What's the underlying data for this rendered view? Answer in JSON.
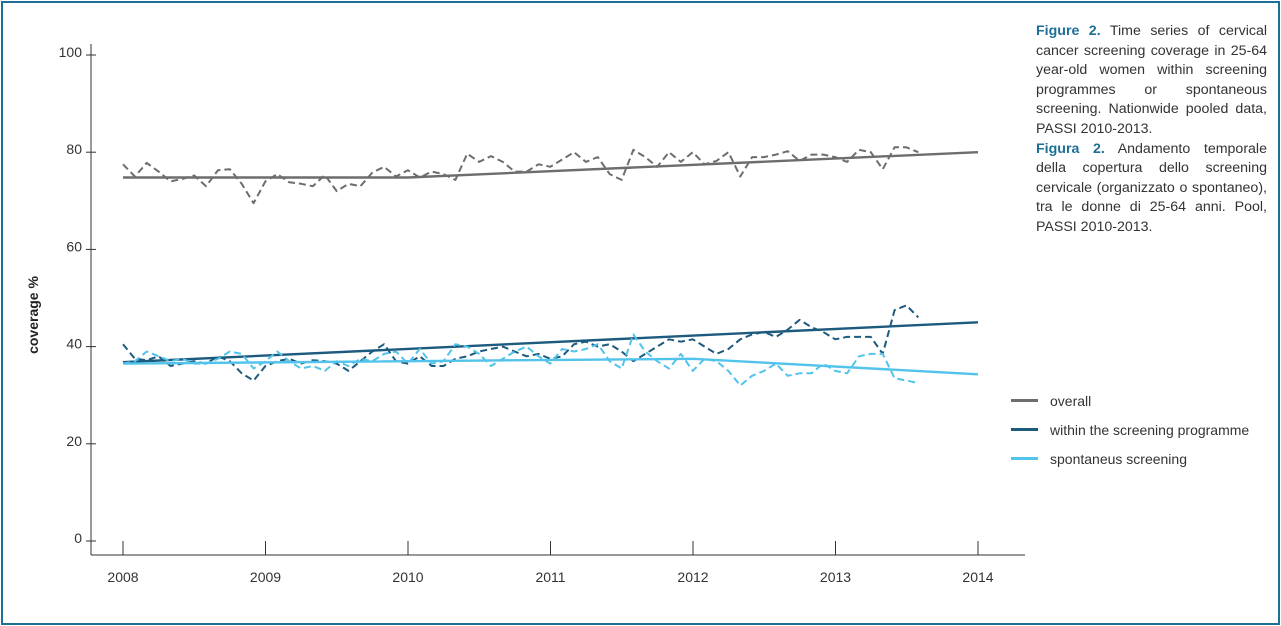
{
  "caption": {
    "en_label": "Figure 2.",
    "en_text": "Time series of cervical cancer screening coverage in 25-64 year-old women within screening programmes or spontaneous screening. Nationwide pooled data, PASSI 2010-2013.",
    "it_label": "Figura 2.",
    "it_text": "Andamento temporale della copertura dello screening cervicale (organizzato o spontaneo), tra le donne di 25-64 anni. Pool, PASSI 2010-2013."
  },
  "colors": {
    "frame": "#1d6f96",
    "overall": "#6d6d6d",
    "programme": "#1c5a7e",
    "spontaneous": "#52c3ea"
  },
  "chart_data": {
    "type": "line",
    "ylabel": "coverage %",
    "xlabel": "",
    "xlim": [
      2008,
      2014
    ],
    "ylim": [
      0,
      100
    ],
    "x_ticks": [
      2008,
      2009,
      2010,
      2011,
      2012,
      2013,
      2014
    ],
    "y_ticks": [
      0,
      20,
      40,
      60,
      80,
      100
    ],
    "grid": false,
    "legend_position": "right",
    "months_x_start": 2008,
    "month_step": 0.0833,
    "series": [
      {
        "name": "overall",
        "key": "overall",
        "style": "dashed",
        "values": [
          77.5,
          75.0,
          77.8,
          76.0,
          74.0,
          74.5,
          75.2,
          73.0,
          76.3,
          76.5,
          73.5,
          69.5,
          74.0,
          75.5,
          73.8,
          73.5,
          73.0,
          75.3,
          72.0,
          73.5,
          73.0,
          75.8,
          77.0,
          75.0,
          76.3,
          74.8,
          76.0,
          75.5,
          74.3,
          79.7,
          78.0,
          79.2,
          78.0,
          76.0,
          76.0,
          77.5,
          77.0,
          78.5,
          80.0,
          78.0,
          79.0,
          75.5,
          74.3,
          80.5,
          79.0,
          77.0,
          80.0,
          78.0,
          80.0,
          77.5,
          78.2,
          80.0,
          75.0,
          79.0,
          79.0,
          79.5,
          80.2,
          78.2,
          79.5,
          79.5,
          79.0,
          78.0,
          80.5,
          80.0,
          76.5,
          81.0,
          81.0,
          80.0
        ]
      },
      {
        "name": "overall",
        "key": "overall",
        "style": "trend",
        "x": [
          2008.0,
          2010.0,
          2014.0
        ],
        "values": [
          74.8,
          74.8,
          80.0
        ]
      },
      {
        "name": "within the screening programme",
        "key": "programme",
        "style": "dashed",
        "values": [
          40.5,
          37.5,
          37.2,
          38.0,
          36.0,
          36.5,
          37.0,
          36.5,
          38.0,
          37.0,
          34.5,
          33.0,
          36.0,
          37.0,
          37.5,
          36.5,
          37.2,
          37.0,
          36.5,
          35.0,
          37.0,
          39.0,
          40.5,
          37.0,
          36.5,
          38.0,
          36.0,
          36.0,
          37.5,
          38.0,
          39.0,
          39.5,
          40.0,
          39.0,
          38.0,
          38.5,
          37.5,
          38.0,
          40.5,
          41.0,
          40.0,
          40.5,
          39.0,
          37.0,
          38.5,
          40.0,
          41.5,
          41.0,
          41.5,
          40.0,
          38.5,
          39.5,
          41.5,
          42.5,
          43.0,
          42.0,
          43.5,
          45.5,
          44.0,
          43.0,
          41.5,
          42.0,
          42.0,
          42.0,
          38.5,
          47.5,
          48.5,
          46.0
        ]
      },
      {
        "name": "within the screening programme",
        "key": "programme",
        "style": "trend",
        "x": [
          2008.0,
          2014.0
        ],
        "values": [
          36.8,
          45.0
        ]
      },
      {
        "name": "spontaneus screening",
        "key": "spontaneous",
        "style": "dashed",
        "values": [
          36.5,
          37.0,
          39.0,
          38.0,
          37.0,
          37.5,
          36.5,
          36.5,
          37.5,
          39.0,
          38.5,
          35.5,
          37.0,
          39.0,
          37.0,
          35.5,
          36.0,
          35.0,
          37.0,
          36.0,
          37.5,
          37.0,
          38.5,
          39.0,
          36.5,
          39.5,
          36.5,
          37.0,
          40.5,
          40.0,
          38.5,
          36.0,
          37.5,
          39.0,
          40.0,
          38.0,
          36.5,
          39.5,
          39.0,
          39.5,
          40.5,
          37.0,
          35.5,
          42.5,
          39.0,
          37.0,
          35.5,
          38.5,
          35.0,
          37.5,
          37.0,
          35.0,
          32.0,
          34.0,
          35.0,
          36.5,
          34.0,
          34.5,
          34.5,
          36.5,
          35.0,
          34.5,
          38.0,
          38.5,
          38.5,
          33.5,
          33.0,
          32.5
        ]
      },
      {
        "name": "spontaneus screening",
        "key": "spontaneous",
        "style": "trend",
        "x": [
          2008.0,
          2012.0,
          2014.0
        ],
        "values": [
          36.5,
          37.5,
          34.3
        ]
      }
    ]
  },
  "legend": [
    {
      "label": "overall",
      "key": "overall"
    },
    {
      "label": "within the screening programme",
      "key": "programme"
    },
    {
      "label": "spontaneus screening",
      "key": "spontaneous"
    }
  ]
}
